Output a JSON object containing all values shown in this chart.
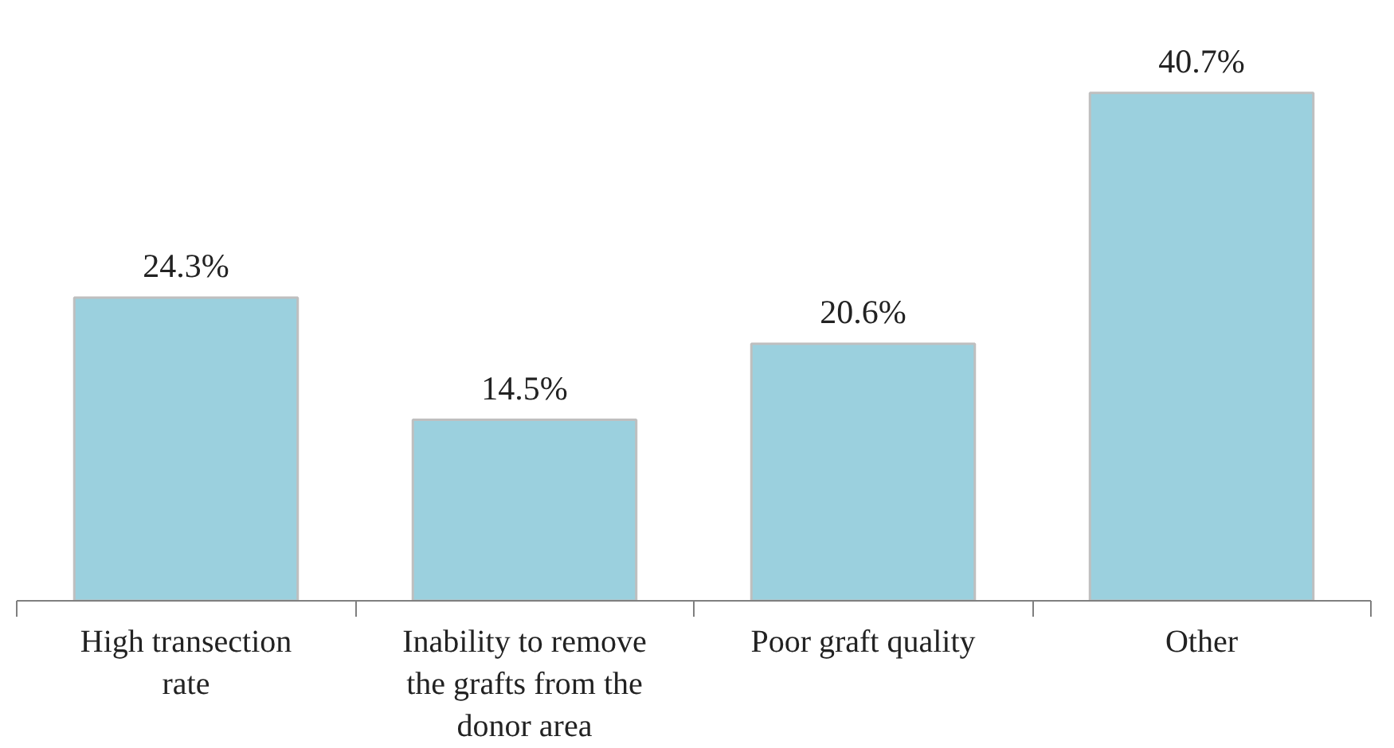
{
  "chart_data": {
    "type": "bar",
    "categories": [
      "High transection rate",
      "Inability to remove the grafts from the donor area",
      "Poor graft quality",
      "Other"
    ],
    "values": [
      24.3,
      14.5,
      20.6,
      40.7
    ],
    "value_labels": [
      "24.3%",
      "14.5%",
      "20.6%",
      "40.7%"
    ],
    "color": "#9bd0de",
    "grid": false
  }
}
